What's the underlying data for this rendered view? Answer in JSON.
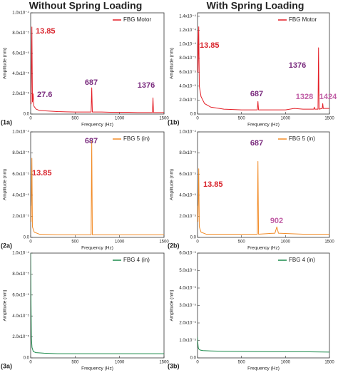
{
  "headers": [
    "Without Spring Loading",
    "With Spring Loading"
  ],
  "chart_data": [
    {
      "type": "line",
      "label": "(1a)",
      "xlabel": "Frequency (Hz)",
      "ylabel": "Amplitude (nm)",
      "xlim": [
        0,
        1500
      ],
      "xticks": [
        0,
        500,
        1000,
        1500
      ],
      "ylim": [
        0,
        0.0001
      ],
      "yticks": [
        {
          "value": 0,
          "label": "0.0"
        },
        {
          "value": 2e-05,
          "label": "2.0x10⁻⁵"
        },
        {
          "value": 4e-05,
          "label": "4.0x10⁻⁵"
        },
        {
          "value": 6e-05,
          "label": "6.0x10⁻⁵"
        },
        {
          "value": 8e-05,
          "label": "8.0x10⁻⁵"
        },
        {
          "value": 0.0001,
          "label": "1.0x10⁻⁴"
        }
      ],
      "legend": "upper right",
      "series": [
        {
          "name": "FBG Motor",
          "color": "#e41e26",
          "x": [
            0,
            5,
            13.85,
            20,
            27.6,
            35,
            60,
            100,
            200,
            300,
            400,
            500,
            600,
            680,
            687,
            694,
            800,
            900,
            1000,
            1100,
            1200,
            1300,
            1370,
            1376,
            1382,
            1450,
            1500
          ],
          "values": [
            2e-05,
            1e-05,
            8.6e-05,
            1.2e-05,
            2e-05,
            8e-06,
            5e-06,
            3.5e-06,
            3e-06,
            2.5e-06,
            2.2e-06,
            2e-06,
            2e-06,
            2e-06,
            2.6e-05,
            2e-06,
            2e-06,
            1.8e-06,
            1.8e-06,
            1.8e-06,
            1.5e-06,
            1.5e-06,
            1.5e-06,
            1.6e-05,
            1.5e-06,
            1.5e-06,
            1.5e-06
          ]
        }
      ],
      "annotations": [
        {
          "text": "13.85",
          "color": "#d9262e"
        },
        {
          "text": "27.6",
          "color": "#7b2d7f"
        },
        {
          "text": "687",
          "color": "#7b2d7f"
        },
        {
          "text": "1376",
          "color": "#7b2d7f"
        }
      ]
    },
    {
      "type": "line",
      "label": "(1b)",
      "xlabel": "Frequency (Hz)",
      "ylabel": "Amplitude (nm)",
      "xlim": [
        0,
        1500
      ],
      "xticks": [
        0,
        500,
        1000,
        1500
      ],
      "ylim": [
        0,
        0.000145
      ],
      "yticks": [
        {
          "value": 0,
          "label": "0.0"
        },
        {
          "value": 2e-05,
          "label": "2.0x10⁻⁵"
        },
        {
          "value": 4e-05,
          "label": "4.0x10⁻⁵"
        },
        {
          "value": 6e-05,
          "label": "6.0x10⁻⁵"
        },
        {
          "value": 8e-05,
          "label": "8.0x10⁻⁵"
        },
        {
          "value": 0.0001,
          "label": "1.0x10⁻⁴"
        },
        {
          "value": 0.00012,
          "label": "1.2x10⁻⁴"
        },
        {
          "value": 0.00014,
          "label": "1.4x10⁻⁴"
        }
      ],
      "legend": "upper right",
      "series": [
        {
          "name": "FBG Motor",
          "color": "#e41e26",
          "x": [
            0,
            5,
            13.85,
            20,
            40,
            80,
            150,
            300,
            500,
            680,
            687,
            694,
            900,
            1000,
            1100,
            1200,
            1300,
            1322,
            1328,
            1334,
            1370,
            1376,
            1382,
            1418,
            1424,
            1430,
            1500
          ],
          "values": [
            0.00012,
            6e-05,
            0.000125,
            4e-05,
            2.5e-05,
            1.5e-05,
            1e-05,
            7e-06,
            6e-06,
            6e-06,
            1.8e-05,
            6e-06,
            6e-06,
            6e-06,
            8e-06,
            7e-06,
            7e-06,
            7e-06,
            1e-05,
            7e-06,
            7e-06,
            9.5e-05,
            7e-06,
            8e-06,
            1.5e-05,
            8e-06,
            8e-06
          ]
        }
      ],
      "annotations": [
        {
          "text": "13.85",
          "color": "#d9262e"
        },
        {
          "text": "687",
          "color": "#7b2d7f"
        },
        {
          "text": "1376",
          "color": "#7b2d7f"
        },
        {
          "text": "1328",
          "color": "#c15fa6"
        },
        {
          "text": "1424",
          "color": "#c15fa6"
        }
      ]
    },
    {
      "type": "line",
      "label": "(2a)",
      "xlabel": "Frequency (Hz)",
      "ylabel": "Amplitude (nm)",
      "xlim": [
        0,
        1500
      ],
      "xticks": [
        0,
        500,
        1000,
        1500
      ],
      "ylim": [
        0,
        0.0001
      ],
      "yticks": [
        {
          "value": 0,
          "label": "0.0"
        },
        {
          "value": 2e-05,
          "label": "2.0x10⁻⁵"
        },
        {
          "value": 4e-05,
          "label": "4.0x10⁻⁵"
        },
        {
          "value": 6e-05,
          "label": "6.0x10⁻⁵"
        },
        {
          "value": 8e-05,
          "label": "8.0x10⁻⁵"
        },
        {
          "value": 0.0001,
          "label": "1.0x10⁻⁴"
        }
      ],
      "legend": "upper right",
      "series": [
        {
          "name": "FBG 5 (in)",
          "color": "#f28c28",
          "x": [
            0,
            5,
            13.85,
            20,
            40,
            100,
            300,
            500,
            680,
            687,
            694,
            900,
            1200,
            1500
          ],
          "values": [
            3e-05,
            1.5e-05,
            7.5e-05,
            1e-05,
            5e-06,
            3e-06,
            2.5e-06,
            2.5e-06,
            2.5e-06,
            9.2e-05,
            2.5e-06,
            2.5e-06,
            2.5e-06,
            2.5e-06
          ]
        }
      ],
      "annotations": [
        {
          "text": "13.85",
          "color": "#d9262e"
        },
        {
          "text": "687",
          "color": "#7b2d7f"
        }
      ]
    },
    {
      "type": "line",
      "label": "(2b)",
      "xlabel": "Frequency (Hz)",
      "ylabel": "Amplitude (nm)",
      "xlim": [
        0,
        1500
      ],
      "xticks": [
        0,
        500,
        1000,
        1500
      ],
      "ylim": [
        0,
        0.0001
      ],
      "yticks": [
        {
          "value": 0,
          "label": "0.0"
        },
        {
          "value": 2e-05,
          "label": "2.0x10⁻⁵"
        },
        {
          "value": 4e-05,
          "label": "4.0x10⁻⁵"
        },
        {
          "value": 6e-05,
          "label": "6.0x10⁻⁵"
        },
        {
          "value": 8e-05,
          "label": "8.0x10⁻⁵"
        },
        {
          "value": 0.0001,
          "label": "1.0x10⁻⁴"
        }
      ],
      "legend": "upper right",
      "series": [
        {
          "name": "FBG 5 (in)",
          "color": "#f28c28",
          "x": [
            0,
            5,
            13.85,
            20,
            40,
            100,
            300,
            500,
            680,
            687,
            694,
            880,
            902,
            920,
            1200,
            1500
          ],
          "values": [
            3e-05,
            1.5e-05,
            6.5e-05,
            1e-05,
            5e-06,
            3e-06,
            3e-06,
            3e-06,
            3e-06,
            7.2e-05,
            3e-06,
            4e-06,
            1e-05,
            4e-06,
            3e-06,
            3e-06
          ]
        }
      ],
      "annotations": [
        {
          "text": "687",
          "color": "#7b2d7f"
        },
        {
          "text": "13.85",
          "color": "#d9262e"
        },
        {
          "text": "902",
          "color": "#c15fa6"
        }
      ]
    },
    {
      "type": "line",
      "label": "(3a)",
      "xlabel": "Frequency (Hz)",
      "ylabel": "Amplitude (nm)",
      "xlim": [
        0,
        1500
      ],
      "xticks": [
        0,
        500,
        1000,
        1500
      ],
      "ylim": [
        0,
        0.0001
      ],
      "yticks": [
        {
          "value": 0,
          "label": "0.0"
        },
        {
          "value": 2e-05,
          "label": "2.0x10⁻⁵"
        },
        {
          "value": 4e-05,
          "label": "4.0x10⁻⁵"
        },
        {
          "value": 6e-05,
          "label": "6.0x10⁻⁵"
        },
        {
          "value": 8e-05,
          "label": "8.0x10⁻⁵"
        },
        {
          "value": 0.0001,
          "label": "1.0x10⁻⁴"
        }
      ],
      "legend": "upper right",
      "series": [
        {
          "name": "FBG 4 (in)",
          "color": "#1a8a4a",
          "x": [
            0,
            3,
            8,
            15,
            30,
            60,
            150,
            300,
            600,
            900,
            1200,
            1500
          ],
          "values": [
            0.0001,
            6e-05,
            2e-05,
            1e-05,
            6e-06,
            5e-06,
            4.5e-06,
            4e-06,
            4e-06,
            4e-06,
            4e-06,
            4e-06
          ]
        }
      ],
      "annotations": []
    },
    {
      "type": "line",
      "label": "(3b)",
      "xlabel": "Frequency (Hz)",
      "ylabel": "Amplitude (nm)",
      "xlim": [
        0,
        1500
      ],
      "xticks": [
        0,
        500,
        1000,
        1500
      ],
      "ylim": [
        0,
        6e-05
      ],
      "yticks": [
        {
          "value": 0,
          "label": "0.0"
        },
        {
          "value": 1e-05,
          "label": "1.0x10⁻⁵"
        },
        {
          "value": 2e-05,
          "label": "2.0x10⁻⁵"
        },
        {
          "value": 3e-05,
          "label": "3.0x10⁻⁵"
        },
        {
          "value": 4e-05,
          "label": "4.0x10⁻⁵"
        },
        {
          "value": 5e-05,
          "label": "5.0x10⁻⁵"
        },
        {
          "value": 6e-05,
          "label": "6.0x10⁻⁵"
        }
      ],
      "legend": "upper right",
      "series": [
        {
          "name": "FBG 4 (in)",
          "color": "#1a8a4a",
          "x": [
            0,
            3,
            8,
            15,
            30,
            60,
            150,
            300,
            600,
            900,
            1200,
            1500
          ],
          "values": [
            1.2e-05,
            9e-06,
            6e-06,
            5e-06,
            4.5e-06,
            4.2e-06,
            4e-06,
            3.8e-06,
            3.6e-06,
            3.5e-06,
            3.5e-06,
            3.3e-06
          ]
        }
      ],
      "annotations": []
    }
  ]
}
